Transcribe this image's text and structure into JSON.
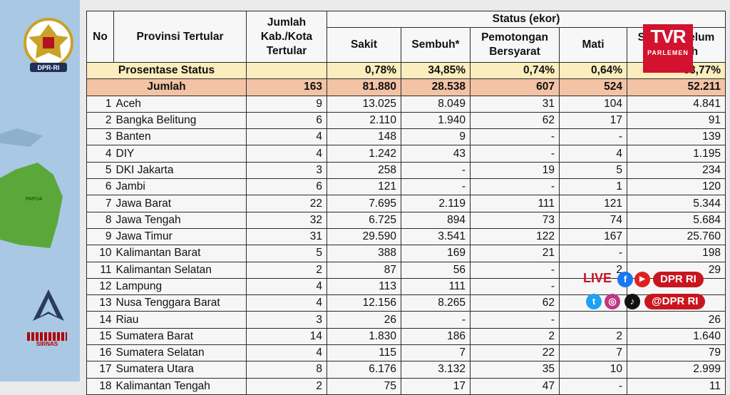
{
  "branding": {
    "emblem_label": "DPR-RI",
    "channel_logo_top": "TVR",
    "channel_logo_bottom": "PARLEMEN",
    "map_label": "PAPUA",
    "sirnas_label": "SIRNAS",
    "brand_color": "#d2122e"
  },
  "social": {
    "live_label": "LIVE",
    "line1_handle": "DPR RI",
    "line2_handle": "@DPR RI"
  },
  "table": {
    "headers": {
      "no": "No",
      "provinsi": "Provinsi Tertular",
      "jumlah": "Jumlah Kab./Kota Tertular",
      "status_group": "Status (ekor)",
      "sakit": "Sakit",
      "sembuh": "Sembuh*",
      "potong": "Pemotongan Bersyarat",
      "mati": "Mati",
      "belum": "Status / Belum Sembuh"
    },
    "prosentase": {
      "label": "Prosentase Status",
      "sakit": "0,78%",
      "sembuh": "34,85%",
      "potong": "0,74%",
      "mati": "0,64%",
      "belum": "63,77%"
    },
    "jumlah": {
      "label": "Jumlah",
      "kab": "163",
      "sakit": "81.880",
      "sembuh": "28.538",
      "potong": "607",
      "mati": "524",
      "belum": "52.211"
    },
    "rows": [
      {
        "no": "1",
        "prov": "Aceh",
        "kab": "9",
        "sakit": "13.025",
        "sembuh": "8.049",
        "potong": "31",
        "mati": "104",
        "belum": "4.841"
      },
      {
        "no": "2",
        "prov": "Bangka Belitung",
        "kab": "6",
        "sakit": "2.110",
        "sembuh": "1.940",
        "potong": "62",
        "mati": "17",
        "belum": "91"
      },
      {
        "no": "3",
        "prov": "Banten",
        "kab": "4",
        "sakit": "148",
        "sembuh": "9",
        "potong": "-",
        "mati": "-",
        "belum": "139"
      },
      {
        "no": "4",
        "prov": "DIY",
        "kab": "4",
        "sakit": "1.242",
        "sembuh": "43",
        "potong": "-",
        "mati": "4",
        "belum": "1.195"
      },
      {
        "no": "5",
        "prov": "DKI Jakarta",
        "kab": "3",
        "sakit": "258",
        "sembuh": "-",
        "potong": "19",
        "mati": "5",
        "belum": "234"
      },
      {
        "no": "6",
        "prov": "Jambi",
        "kab": "6",
        "sakit": "121",
        "sembuh": "-",
        "potong": "-",
        "mati": "1",
        "belum": "120"
      },
      {
        "no": "7",
        "prov": "Jawa Barat",
        "kab": "22",
        "sakit": "7.695",
        "sembuh": "2.119",
        "potong": "111",
        "mati": "121",
        "belum": "5.344"
      },
      {
        "no": "8",
        "prov": "Jawa Tengah",
        "kab": "32",
        "sakit": "6.725",
        "sembuh": "894",
        "potong": "73",
        "mati": "74",
        "belum": "5.684"
      },
      {
        "no": "9",
        "prov": "Jawa Timur",
        "kab": "31",
        "sakit": "29.590",
        "sembuh": "3.541",
        "potong": "122",
        "mati": "167",
        "belum": "25.760"
      },
      {
        "no": "10",
        "prov": "Kalimantan Barat",
        "kab": "5",
        "sakit": "388",
        "sembuh": "169",
        "potong": "21",
        "mati": "-",
        "belum": "198"
      },
      {
        "no": "11",
        "prov": "Kalimantan Selatan",
        "kab": "2",
        "sakit": "87",
        "sembuh": "56",
        "potong": "-",
        "mati": "2",
        "belum": "29"
      },
      {
        "no": "12",
        "prov": "Lampung",
        "kab": "4",
        "sakit": "113",
        "sembuh": "111",
        "potong": "-",
        "mati": "",
        "belum": ""
      },
      {
        "no": "13",
        "prov": "Nusa Tenggara Barat",
        "kab": "4",
        "sakit": "12.156",
        "sembuh": "8.265",
        "potong": "62",
        "mati": "",
        "belum": ""
      },
      {
        "no": "14",
        "prov": "Riau",
        "kab": "3",
        "sakit": "26",
        "sembuh": "-",
        "potong": "-",
        "mati": "",
        "belum": "26"
      },
      {
        "no": "15",
        "prov": "Sumatera Barat",
        "kab": "14",
        "sakit": "1.830",
        "sembuh": "186",
        "potong": "2",
        "mati": "2",
        "belum": "1.640"
      },
      {
        "no": "16",
        "prov": "Sumatera Selatan",
        "kab": "4",
        "sakit": "115",
        "sembuh": "7",
        "potong": "22",
        "mati": "7",
        "belum": "79"
      },
      {
        "no": "17",
        "prov": "Sumatera Utara",
        "kab": "8",
        "sakit": "6.176",
        "sembuh": "3.132",
        "potong": "35",
        "mati": "10",
        "belum": "2.999"
      },
      {
        "no": "18",
        "prov": "Kalimantan Tengah",
        "kab": "2",
        "sakit": "75",
        "sembuh": "17",
        "potong": "47",
        "mati": "-",
        "belum": "11"
      }
    ]
  }
}
